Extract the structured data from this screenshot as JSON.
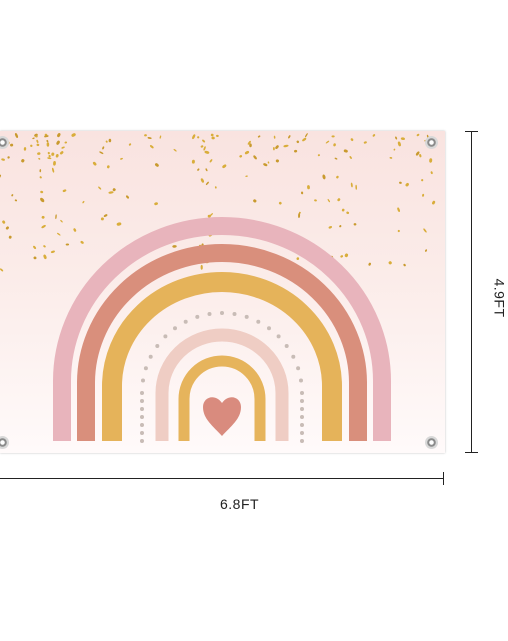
{
  "product": {
    "width_label": "6.8FT",
    "height_label": "4.9FT",
    "colors": {
      "background_top": "#f9e3e0",
      "background_bottom": "#fffafa",
      "confetti": "#d9ad3a",
      "rainbow_outer": "#e8b4bc",
      "rainbow_second": "#d98f7c",
      "rainbow_third": "#e5b35a",
      "dots": "#c8bcb6",
      "rainbow_inner": "#efcdc4",
      "rainbow_core": "#e6b45c",
      "heart": "#d98b7e"
    }
  }
}
